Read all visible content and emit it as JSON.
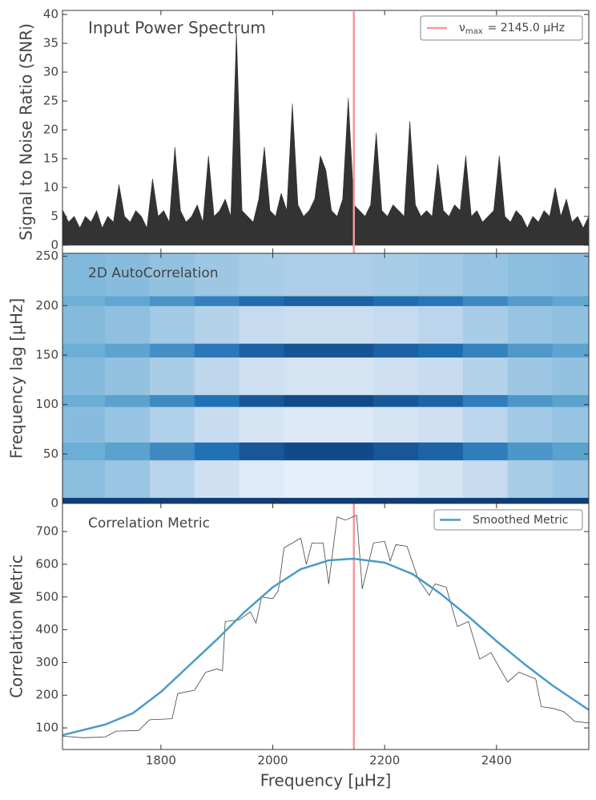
{
  "chart_data": [
    {
      "type": "line",
      "title": "Input Power Spectrum",
      "ylabel": "Signal to Noise Ratio (SNR)",
      "x": [
        1625,
        1635,
        1645,
        1655,
        1665,
        1675,
        1685,
        1695,
        1705,
        1715,
        1725,
        1735,
        1745,
        1755,
        1765,
        1775,
        1785,
        1795,
        1805,
        1815,
        1825,
        1835,
        1845,
        1855,
        1865,
        1875,
        1885,
        1895,
        1905,
        1915,
        1925,
        1935,
        1945,
        1955,
        1965,
        1975,
        1985,
        1995,
        2005,
        2015,
        2025,
        2035,
        2045,
        2055,
        2065,
        2075,
        2085,
        2095,
        2105,
        2115,
        2125,
        2135,
        2145,
        2155,
        2165,
        2175,
        2185,
        2195,
        2205,
        2215,
        2225,
        2235,
        2245,
        2255,
        2265,
        2275,
        2285,
        2295,
        2305,
        2315,
        2325,
        2335,
        2345,
        2355,
        2365,
        2375,
        2385,
        2395,
        2405,
        2415,
        2425,
        2435,
        2445,
        2455,
        2465,
        2475,
        2485,
        2495,
        2505,
        2515,
        2525,
        2535,
        2545,
        2555,
        2565
      ],
      "values": [
        6,
        4,
        5,
        3,
        5,
        4,
        6,
        3,
        5,
        4,
        10.5,
        5,
        4,
        6,
        5,
        3,
        11.5,
        5,
        6,
        4,
        17,
        6,
        4,
        5,
        7,
        4,
        15.5,
        5,
        6,
        8,
        5,
        37,
        6,
        5,
        4,
        8,
        17,
        6,
        5,
        9,
        6,
        24.5,
        7,
        5,
        6,
        8,
        15.5,
        13,
        6,
        5,
        8,
        25.5,
        7,
        6,
        5,
        7,
        19.5,
        6,
        5,
        7,
        6,
        5,
        21.5,
        7,
        5,
        6,
        5,
        14,
        6,
        5,
        7,
        6,
        15.5,
        5,
        6,
        4,
        5,
        6,
        15.5,
        5,
        4,
        6,
        5,
        3,
        5,
        4,
        6,
        5,
        10,
        5,
        8,
        4,
        5,
        3,
        5
      ],
      "color": "#333333",
      "xlim": [
        1624,
        2565
      ],
      "ylim": [
        -1.4,
        40.7
      ],
      "yticks": [
        0,
        5,
        10,
        15,
        20,
        25,
        30,
        35,
        40
      ],
      "vline": {
        "x": 2145.0,
        "color": "#f4999b",
        "label_symbol": "ν",
        "label_subscript": "max",
        "label_text": "=  2145.0 µHz"
      },
      "legend": "upper right"
    },
    {
      "type": "heatmap",
      "title": "2D AutoCorrelation",
      "ylabel": "Frequency lag [µHz]",
      "x_edges": [
        1624,
        1700,
        1780,
        1860,
        1940,
        2020,
        2100,
        2180,
        2260,
        2340,
        2420,
        2500,
        2565
      ],
      "y_edges": [
        0,
        6,
        44,
        62,
        98,
        110,
        148,
        162,
        200,
        210,
        253
      ],
      "z": [
        [
          0.95,
          0.95,
          0.95,
          0.95,
          0.95,
          0.95,
          0.95,
          0.95,
          0.95,
          0.95,
          0.95,
          0.95
        ],
        [
          0.41,
          0.37,
          0.29,
          0.21,
          0.13,
          0.09,
          0.09,
          0.13,
          0.17,
          0.25,
          0.33,
          0.37
        ],
        [
          0.5,
          0.55,
          0.65,
          0.75,
          0.85,
          0.9,
          0.9,
          0.85,
          0.8,
          0.7,
          0.6,
          0.55
        ],
        [
          0.42,
          0.38,
          0.31,
          0.24,
          0.17,
          0.14,
          0.14,
          0.17,
          0.21,
          0.28,
          0.35,
          0.38
        ],
        [
          0.5,
          0.55,
          0.65,
          0.75,
          0.85,
          0.9,
          0.9,
          0.85,
          0.8,
          0.7,
          0.6,
          0.55
        ],
        [
          0.43,
          0.39,
          0.33,
          0.27,
          0.21,
          0.18,
          0.18,
          0.21,
          0.24,
          0.3,
          0.36,
          0.39
        ],
        [
          0.5,
          0.54,
          0.63,
          0.72,
          0.81,
          0.86,
          0.86,
          0.81,
          0.77,
          0.68,
          0.59,
          0.54
        ],
        [
          0.43,
          0.4,
          0.35,
          0.3,
          0.25,
          0.23,
          0.23,
          0.25,
          0.28,
          0.33,
          0.38,
          0.4
        ],
        [
          0.49,
          0.53,
          0.61,
          0.69,
          0.77,
          0.81,
          0.81,
          0.77,
          0.73,
          0.65,
          0.57,
          0.53
        ],
        [
          0.44,
          0.42,
          0.39,
          0.36,
          0.33,
          0.32,
          0.32,
          0.33,
          0.35,
          0.38,
          0.41,
          0.42
        ]
      ],
      "colormap": "Blues",
      "xlim": [
        1624,
        2565
      ],
      "ylim": [
        0,
        253
      ],
      "yticks": [
        0,
        50,
        100,
        150,
        200,
        250
      ]
    },
    {
      "type": "line",
      "title": "Correlation Metric",
      "ylabel": "Correlation Metric",
      "xlabel": "Frequency [µHz]",
      "series": [
        {
          "color": "#444444",
          "x": [
            1624,
            1660,
            1700,
            1720,
            1760,
            1780,
            1820,
            1830,
            1860,
            1880,
            1900,
            1910,
            1915,
            1940,
            1960,
            1970,
            1980,
            2000,
            2010,
            2020,
            2040,
            2050,
            2060,
            2070,
            2090,
            2100,
            2115,
            2130,
            2150,
            2160,
            2180,
            2200,
            2210,
            2220,
            2240,
            2260,
            2280,
            2290,
            2310,
            2330,
            2350,
            2370,
            2390,
            2400,
            2420,
            2440,
            2470,
            2480,
            2500,
            2520,
            2540,
            2565
          ],
          "values": [
            75,
            70,
            72,
            90,
            92,
            125,
            128,
            205,
            215,
            270,
            280,
            275,
            425,
            430,
            455,
            420,
            500,
            495,
            520,
            650,
            670,
            680,
            600,
            665,
            665,
            540,
            745,
            735,
            750,
            525,
            665,
            670,
            610,
            660,
            655,
            555,
            505,
            540,
            530,
            410,
            425,
            310,
            330,
            300,
            240,
            270,
            250,
            165,
            160,
            150,
            120,
            115
          ]
        },
        {
          "name": "Smoothed Metric",
          "color": "#4a9bc7",
          "x": [
            1624,
            1700,
            1750,
            1800,
            1850,
            1900,
            1950,
            2000,
            2050,
            2100,
            2145,
            2200,
            2250,
            2300,
            2350,
            2400,
            2450,
            2500,
            2565
          ],
          "values": [
            78,
            110,
            145,
            210,
            290,
            370,
            455,
            530,
            585,
            612,
            617,
            605,
            570,
            510,
            440,
            365,
            295,
            230,
            155
          ]
        }
      ],
      "xlim": [
        1624,
        2565
      ],
      "ylim": [
        34,
        786
      ],
      "yticks": [
        100,
        200,
        300,
        400,
        500,
        600,
        700
      ],
      "xticks": [
        1800,
        2000,
        2200,
        2400
      ],
      "legend": "upper right"
    }
  ]
}
